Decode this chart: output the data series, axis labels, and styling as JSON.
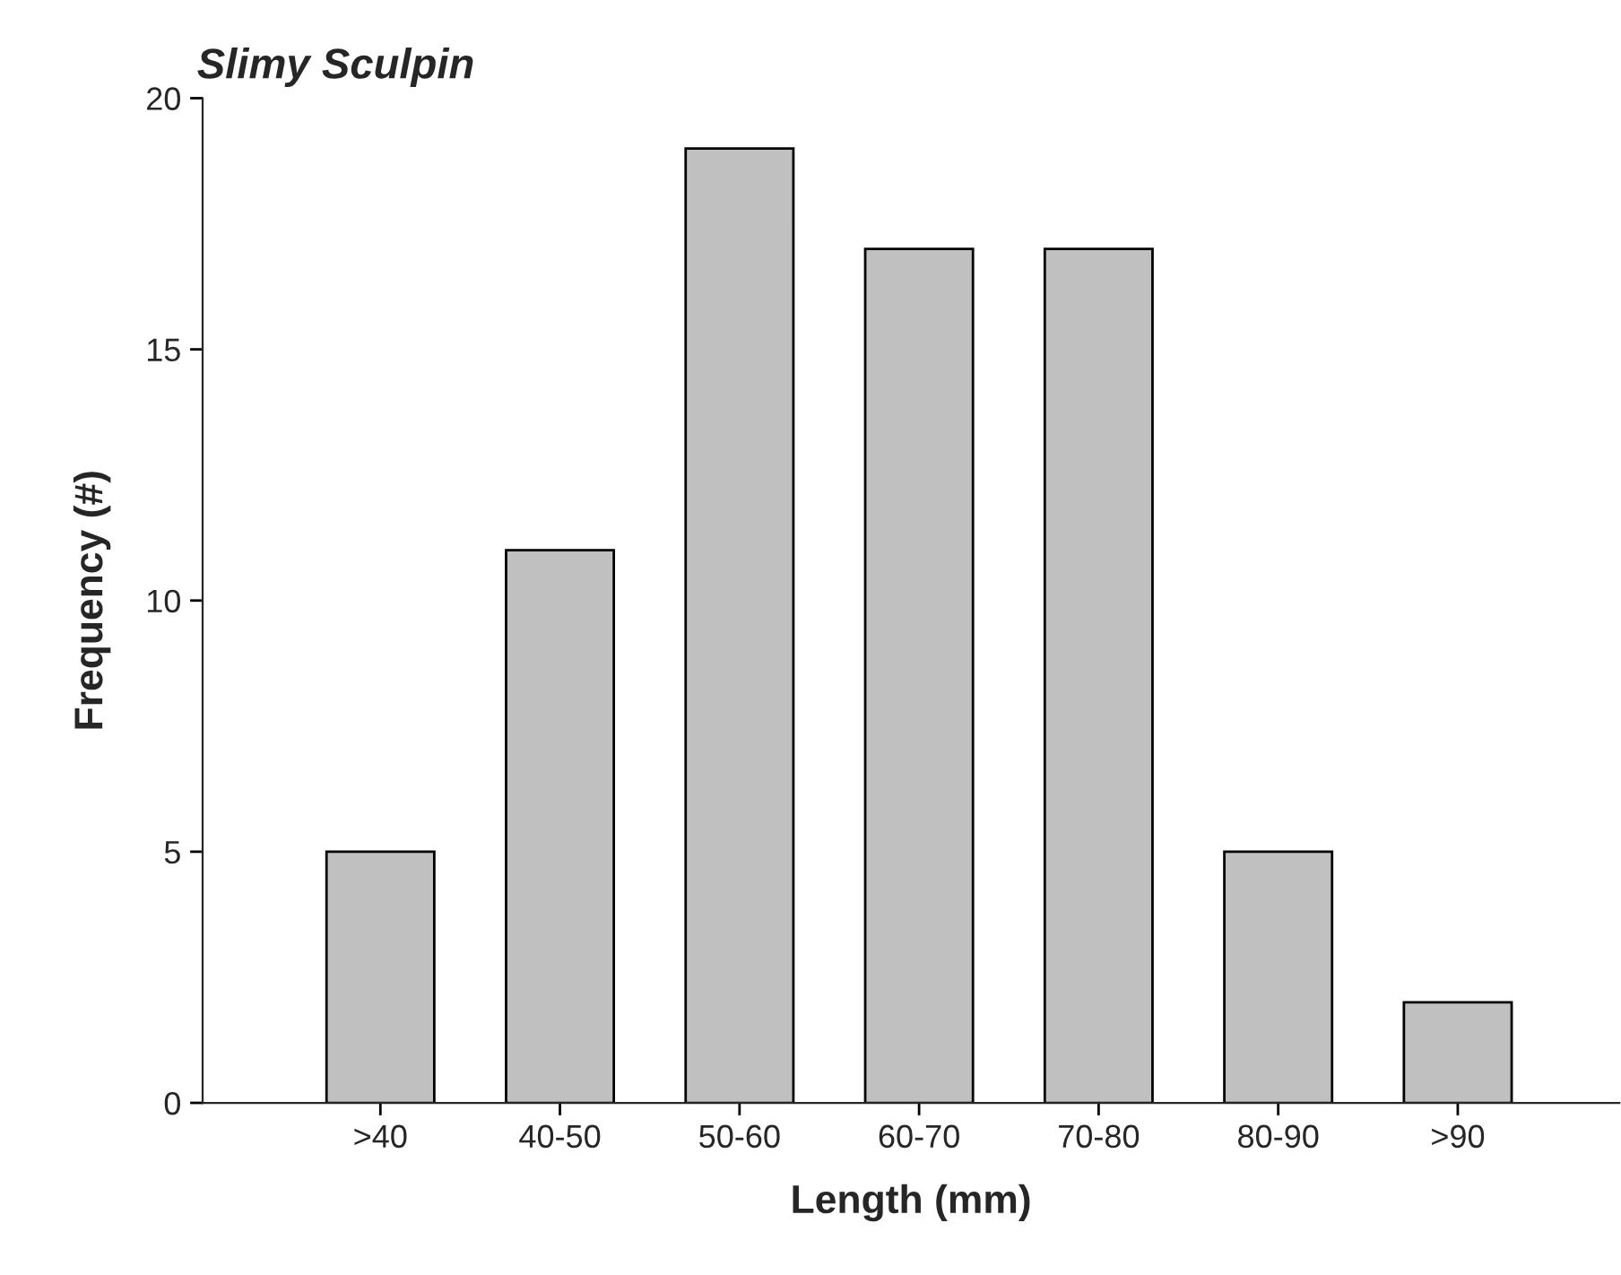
{
  "chart_data": {
    "type": "bar",
    "title": "Slimy Sculpin",
    "xlabel": "Length (mm)",
    "ylabel": "Frequency (#)",
    "categories": [
      ">40",
      "40-50",
      "50-60",
      "60-70",
      "70-80",
      "80-90",
      ">90"
    ],
    "values": [
      5,
      11,
      19,
      17,
      17,
      5,
      2
    ],
    "color": "#c0c0c0",
    "ylim": [
      0,
      20
    ],
    "yticks": [
      0,
      5,
      10,
      15,
      20
    ],
    "grid": false,
    "legend": false
  }
}
